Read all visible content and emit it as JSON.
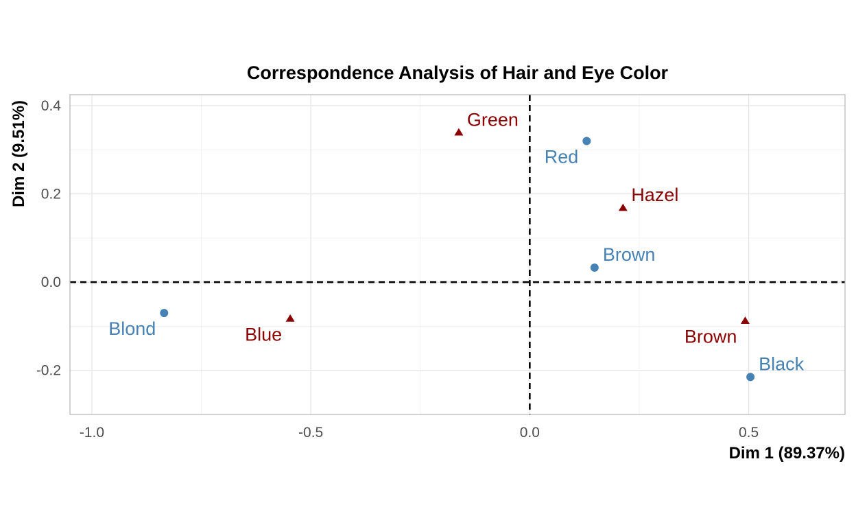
{
  "chart_data": {
    "type": "scatter",
    "title": "Correspondence Analysis of Hair and Eye Color",
    "xlabel": "Dim 1 (89.37%)",
    "ylabel": "Dim 2 (9.51%)",
    "xlim": [
      -1.05,
      0.72
    ],
    "ylim": [
      -0.3,
      0.425
    ],
    "x_ticks": [
      {
        "value": -1.0,
        "label": "-1.0"
      },
      {
        "value": -0.5,
        "label": "-0.5"
      },
      {
        "value": 0.0,
        "label": "0.0"
      },
      {
        "value": 0.5,
        "label": "0.5"
      }
    ],
    "y_ticks": [
      {
        "value": -0.2,
        "label": "-0.2"
      },
      {
        "value": 0.0,
        "label": "0.0"
      },
      {
        "value": 0.2,
        "label": "0.2"
      },
      {
        "value": 0.4,
        "label": "0.4"
      }
    ],
    "grid": true,
    "reference_lines": {
      "x": 0,
      "y": 0
    },
    "series": [
      {
        "color": "#4682b4",
        "marker": "circle",
        "points": [
          {
            "label": "Black",
            "x": 0.504,
            "y": -0.215,
            "label_side": "above-right"
          },
          {
            "label": "Brown",
            "x": 0.148,
            "y": 0.033,
            "label_side": "above-right"
          },
          {
            "label": "Red",
            "x": 0.13,
            "y": 0.32,
            "label_side": "below-left"
          },
          {
            "label": "Blond",
            "x": -0.835,
            "y": -0.07,
            "label_side": "below-left"
          }
        ]
      },
      {
        "color": "#8b0000",
        "marker": "triangle",
        "points": [
          {
            "label": "Brown",
            "x": 0.492,
            "y": -0.088,
            "label_side": "below-left"
          },
          {
            "label": "Blue",
            "x": -0.547,
            "y": -0.083,
            "label_side": "below-left"
          },
          {
            "label": "Hazel",
            "x": 0.213,
            "y": 0.168,
            "label_side": "above-right"
          },
          {
            "label": "Green",
            "x": -0.162,
            "y": 0.339,
            "label_side": "above-right"
          }
        ]
      }
    ]
  }
}
